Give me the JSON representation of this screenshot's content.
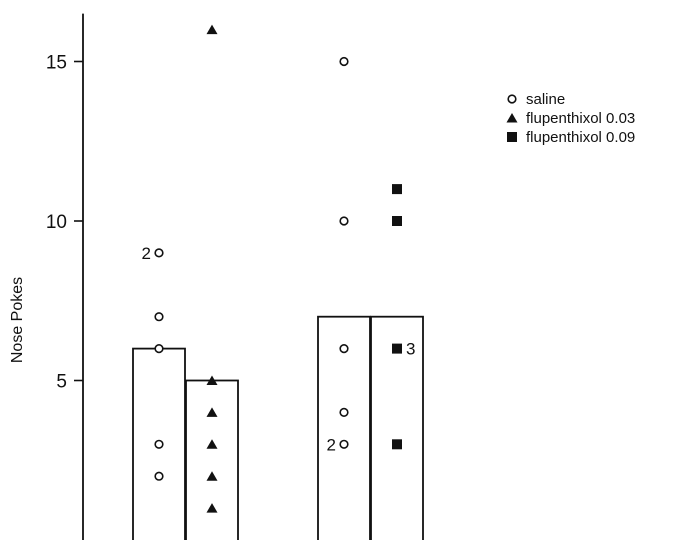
{
  "chart_data": {
    "type": "bar",
    "ylabel": "Nose  Pokes",
    "yticks": [
      "5",
      "10",
      "15"
    ],
    "ytick_values": [
      5,
      10,
      15
    ],
    "ylim": [
      0,
      16.5
    ],
    "grid": false,
    "legend_position": "top-right",
    "legend": [
      {
        "label": "saline",
        "marker": "open-circle"
      },
      {
        "label": "flupenthixol 0.03",
        "marker": "filled-triangle"
      },
      {
        "label": "flupenthixol 0.09",
        "marker": "filled-square"
      }
    ],
    "bars": [
      {
        "group": 1,
        "series": "saline",
        "value": 6
      },
      {
        "group": 1,
        "series": "flupenthixol 0.03",
        "value": 5
      },
      {
        "group": 2,
        "series": "saline",
        "value": 7
      },
      {
        "group": 2,
        "series": "flupenthixol 0.09",
        "value": 7
      }
    ],
    "points": [
      {
        "bar": 0,
        "marker": "open-circle",
        "values": [
          9,
          7,
          6,
          3,
          2
        ],
        "counts": [
          {
            "value": 9,
            "label": "2"
          }
        ]
      },
      {
        "bar": 1,
        "marker": "filled-triangle",
        "values": [
          16,
          5,
          4,
          3,
          2,
          1
        ],
        "counts": []
      },
      {
        "bar": 2,
        "marker": "open-circle",
        "values": [
          15,
          10,
          6,
          4,
          3
        ],
        "counts": [
          {
            "value": 3,
            "label": "2"
          }
        ]
      },
      {
        "bar": 3,
        "marker": "filled-square",
        "values": [
          11,
          10,
          6,
          3
        ],
        "counts": [
          {
            "value": 6,
            "label": "3"
          }
        ]
      }
    ]
  }
}
